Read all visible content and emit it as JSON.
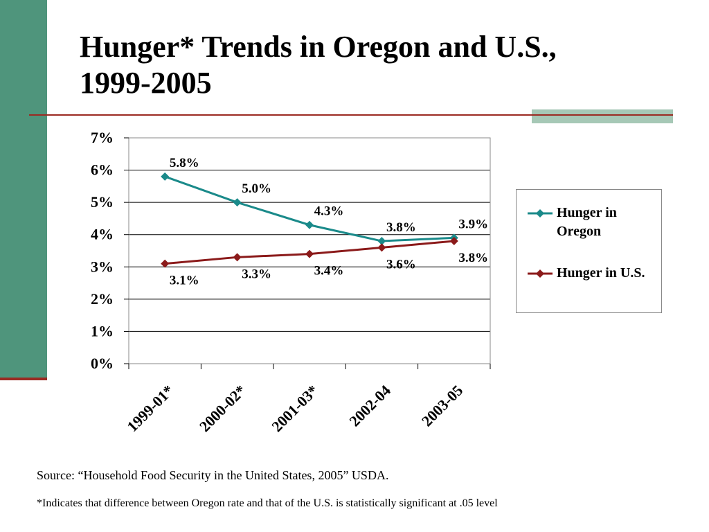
{
  "slide": {
    "title_line1": "Hunger* Trends in Oregon and U.S.,",
    "title_line2": "1999-2005",
    "source": "Source: “Household Food Security in the United States, 2005” USDA.",
    "footnote": "*Indicates that difference between Oregon rate and that of the U.S. is statistically significant at .05 level"
  },
  "colors": {
    "sidebar": "#4f957c",
    "rule": "#9b2a22",
    "oregon": "#1a8a8a",
    "us": "#8b1a1a"
  },
  "chart_data": {
    "type": "line",
    "title": "",
    "xlabel": "",
    "ylabel": "",
    "categories": [
      "1999-01*",
      "2000-02*",
      "2001-03*",
      "2002-04",
      "2003-05"
    ],
    "ylim": [
      0,
      7
    ],
    "ytick_labels": [
      "0%",
      "1%",
      "2%",
      "3%",
      "4%",
      "5%",
      "6%",
      "7%"
    ],
    "grid": true,
    "legend_position": "right",
    "series": [
      {
        "name": "Hunger in Oregon",
        "values": [
          5.8,
          5.0,
          4.3,
          3.8,
          3.9
        ],
        "labels": [
          "5.8%",
          "5.0%",
          "4.3%",
          "3.8%",
          "3.9%"
        ]
      },
      {
        "name": "Hunger in U.S.",
        "values": [
          3.1,
          3.3,
          3.4,
          3.6,
          3.8
        ],
        "labels": [
          "3.1%",
          "3.3%",
          "3.4%",
          "3.6%",
          "3.8%"
        ]
      }
    ]
  }
}
